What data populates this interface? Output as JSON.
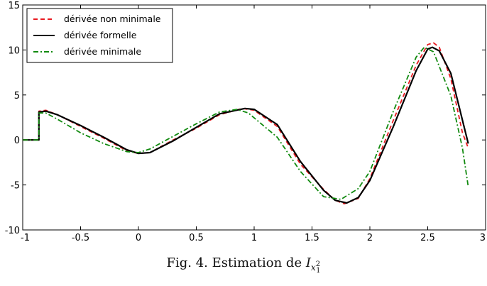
{
  "caption": {
    "prefix": "Fig. 4.  Estimation de ",
    "symbol": "I",
    "sub_base": "x",
    "sub_sup": "2",
    "sub_sub": "1"
  },
  "chart_data": {
    "type": "line",
    "title": "",
    "xlabel": "",
    "ylabel": "",
    "xlim": [
      -1,
      3
    ],
    "ylim": [
      -10,
      15
    ],
    "grid": false,
    "legend_position": "top-left",
    "xticks": [
      -1,
      -0.5,
      0,
      0.5,
      1,
      1.5,
      2,
      2.5,
      3
    ],
    "xtick_labels": [
      "-1",
      "-0.5",
      "0",
      "0.5",
      "1",
      "1.5",
      "2",
      "2.5",
      "3"
    ],
    "yticks": [
      -10,
      -5,
      0,
      5,
      10,
      15
    ],
    "ytick_labels": [
      "-10",
      "-5",
      "0",
      "5",
      "10",
      "15"
    ],
    "series": [
      {
        "name": "dérivée non minimale",
        "color": "#e8191f",
        "style": "dashed",
        "points": [
          [
            -1,
            0
          ],
          [
            -0.86,
            0
          ],
          [
            -0.86,
            3.2
          ],
          [
            -0.8,
            3.3
          ],
          [
            -0.7,
            2.8
          ],
          [
            -0.5,
            1.5
          ],
          [
            -0.3,
            0.2
          ],
          [
            -0.1,
            -1.2
          ],
          [
            0,
            -1.5
          ],
          [
            0.1,
            -1.4
          ],
          [
            0.3,
            0
          ],
          [
            0.5,
            1.3
          ],
          [
            0.7,
            2.8
          ],
          [
            0.9,
            3.5
          ],
          [
            1.0,
            3.3
          ],
          [
            1.2,
            1.5
          ],
          [
            1.4,
            -2.7
          ],
          [
            1.6,
            -5.5
          ],
          [
            1.7,
            -6.7
          ],
          [
            1.78,
            -7.1
          ],
          [
            1.9,
            -6.5
          ],
          [
            2.0,
            -4.3
          ],
          [
            2.2,
            2.1
          ],
          [
            2.4,
            8.3
          ],
          [
            2.5,
            10.6
          ],
          [
            2.55,
            10.8
          ],
          [
            2.6,
            10.3
          ],
          [
            2.7,
            6.8
          ],
          [
            2.8,
            0.8
          ],
          [
            2.85,
            -0.9
          ]
        ]
      },
      {
        "name": "dérivée formelle",
        "color": "#000000",
        "style": "solid",
        "points": [
          [
            -1,
            0
          ],
          [
            -0.86,
            0
          ],
          [
            -0.86,
            3.1
          ],
          [
            -0.8,
            3.2
          ],
          [
            -0.7,
            2.8
          ],
          [
            -0.5,
            1.6
          ],
          [
            -0.3,
            0.3
          ],
          [
            -0.1,
            -1.1
          ],
          [
            0,
            -1.5
          ],
          [
            0.1,
            -1.4
          ],
          [
            0.3,
            -0.1
          ],
          [
            0.5,
            1.4
          ],
          [
            0.7,
            2.9
          ],
          [
            0.92,
            3.5
          ],
          [
            1.0,
            3.4
          ],
          [
            1.2,
            1.7
          ],
          [
            1.4,
            -2.4
          ],
          [
            1.6,
            -5.6
          ],
          [
            1.7,
            -6.7
          ],
          [
            1.8,
            -7.0
          ],
          [
            1.9,
            -6.4
          ],
          [
            2.0,
            -4.5
          ],
          [
            2.2,
            1.4
          ],
          [
            2.4,
            7.7
          ],
          [
            2.5,
            10.1
          ],
          [
            2.54,
            10.3
          ],
          [
            2.6,
            9.9
          ],
          [
            2.7,
            7.4
          ],
          [
            2.8,
            2.2
          ],
          [
            2.85,
            -0.4
          ]
        ]
      },
      {
        "name": "dérivée minimale",
        "color": "#118a0f",
        "style": "dashdot",
        "points": [
          [
            -1,
            0
          ],
          [
            -0.86,
            0
          ],
          [
            -0.86,
            3.0
          ],
          [
            -0.8,
            3.0
          ],
          [
            -0.7,
            2.3
          ],
          [
            -0.5,
            0.8
          ],
          [
            -0.3,
            -0.4
          ],
          [
            -0.1,
            -1.3
          ],
          [
            0,
            -1.4
          ],
          [
            0.1,
            -1.0
          ],
          [
            0.3,
            0.4
          ],
          [
            0.5,
            1.8
          ],
          [
            0.7,
            3.1
          ],
          [
            0.85,
            3.4
          ],
          [
            0.95,
            3.0
          ],
          [
            1.2,
            0.3
          ],
          [
            1.4,
            -3.5
          ],
          [
            1.6,
            -6.3
          ],
          [
            1.75,
            -6.6
          ],
          [
            1.9,
            -5.4
          ],
          [
            2.0,
            -3.5
          ],
          [
            2.2,
            3.1
          ],
          [
            2.4,
            9.2
          ],
          [
            2.47,
            10.3
          ],
          [
            2.55,
            9.8
          ],
          [
            2.7,
            4.9
          ],
          [
            2.8,
            -0.9
          ],
          [
            2.85,
            -5.2
          ]
        ]
      }
    ]
  }
}
